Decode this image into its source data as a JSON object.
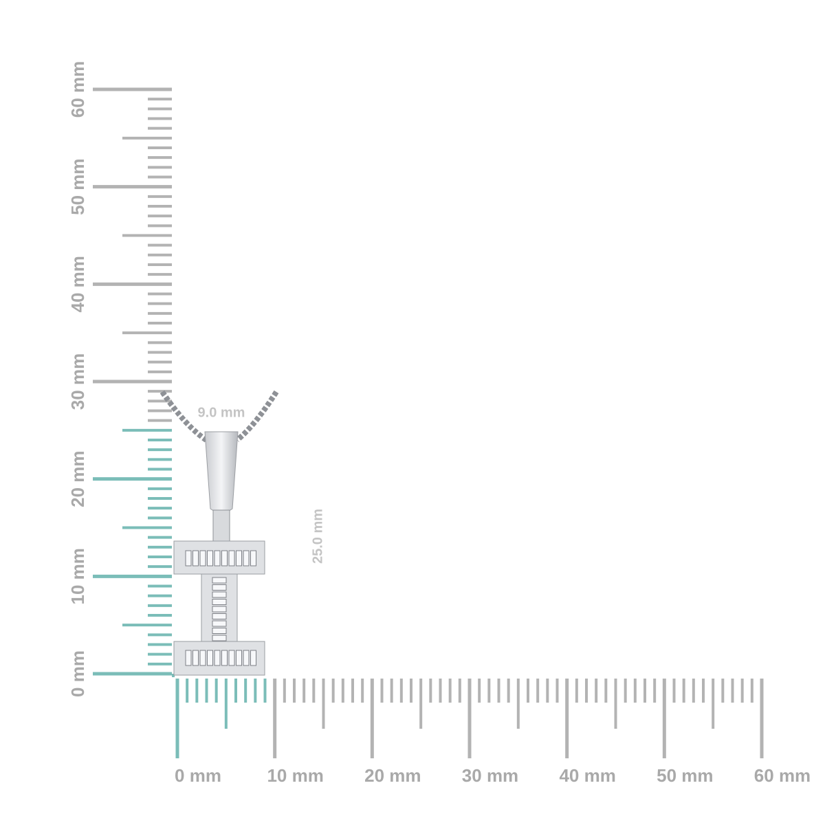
{
  "vertical_ruler": {
    "labels": [
      "0 mm",
      "10 mm",
      "20 mm",
      "30 mm",
      "40 mm",
      "50 mm",
      "60 mm"
    ]
  },
  "horizontal_ruler": {
    "labels": [
      "0 mm",
      "10 mm",
      "20 mm",
      "30 mm",
      "40 mm",
      "50 mm",
      "60 mm"
    ]
  },
  "dimensions": {
    "width": "9.0 mm",
    "height": "25.0 mm"
  }
}
